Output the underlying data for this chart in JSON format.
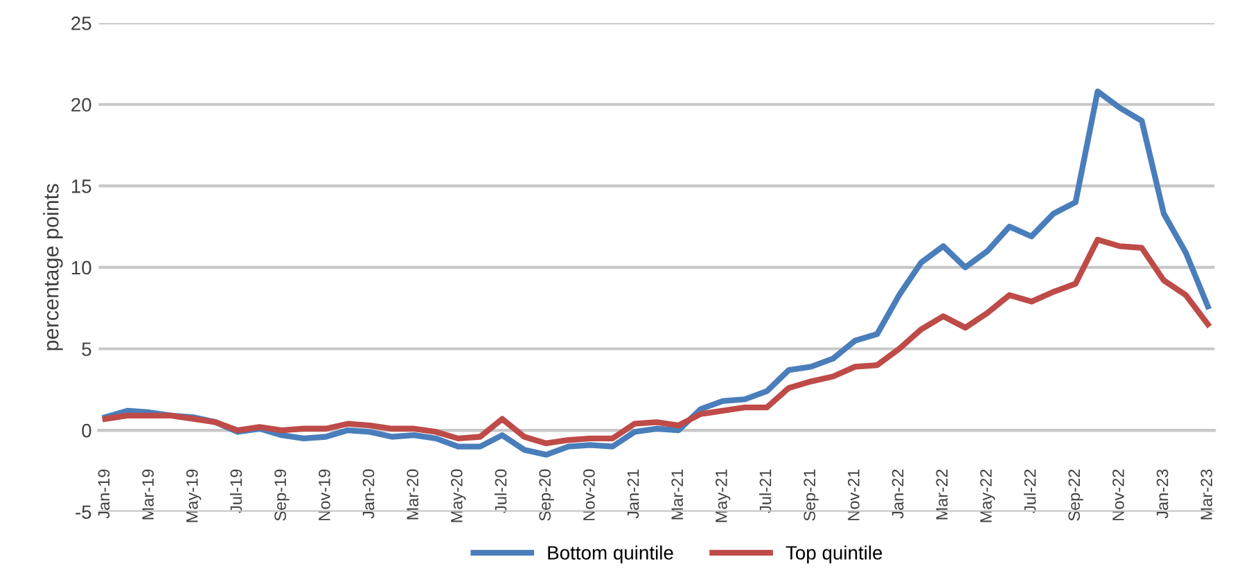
{
  "chart_data": {
    "type": "line",
    "ylabel": "percentage points",
    "categories": [
      "Jan-19",
      null,
      "Mar-19",
      null,
      "May-19",
      null,
      "Jul-19",
      null,
      "Sep-19",
      null,
      "Nov-19",
      null,
      "Jan-20",
      null,
      "Mar-20",
      null,
      "May-20",
      null,
      "Jul-20",
      null,
      "Sep-20",
      null,
      "Nov-20",
      null,
      "Jan-21",
      null,
      "Mar-21",
      null,
      "May-21",
      null,
      "Jul-21",
      null,
      "Sep-21",
      null,
      "Nov-21",
      null,
      "Jan-22",
      null,
      "Mar-22",
      null,
      "May-22",
      null,
      "Jul-22",
      null,
      "Sep-22",
      null,
      "Nov-22",
      null,
      "Jan-23",
      null,
      "Mar-23"
    ],
    "series": [
      {
        "name": "Bottom quintile",
        "color": "#4a7ebb",
        "values": [
          0.8,
          1.2,
          1.1,
          0.9,
          0.8,
          0.5,
          -0.1,
          0.1,
          -0.3,
          -0.5,
          -0.4,
          0.0,
          -0.1,
          -0.4,
          -0.3,
          -0.5,
          -1.0,
          -1.0,
          -0.3,
          -1.2,
          -1.5,
          -1.0,
          -0.9,
          -1.0,
          -0.1,
          0.1,
          0.0,
          1.3,
          1.8,
          1.9,
          2.4,
          3.7,
          3.9,
          4.4,
          5.5,
          5.9,
          8.3,
          10.3,
          11.3,
          10.0,
          11.0,
          12.5,
          11.9,
          13.3,
          14.0,
          20.8,
          19.8,
          19.0,
          13.3,
          10.9,
          7.6
        ]
      },
      {
        "name": "Top quintile",
        "color": "#be4b48",
        "values": [
          0.7,
          0.9,
          0.9,
          0.9,
          0.7,
          0.5,
          0.0,
          0.2,
          0.0,
          0.1,
          0.1,
          0.4,
          0.3,
          0.1,
          0.1,
          -0.1,
          -0.5,
          -0.4,
          0.7,
          -0.4,
          -0.8,
          -0.6,
          -0.5,
          -0.5,
          0.4,
          0.5,
          0.3,
          1.0,
          1.2,
          1.4,
          1.4,
          2.6,
          3.0,
          3.3,
          3.9,
          4.0,
          5.0,
          6.2,
          7.0,
          6.3,
          7.2,
          8.3,
          7.9,
          8.5,
          9.0,
          11.7,
          11.3,
          11.2,
          9.2,
          8.3,
          6.5
        ]
      }
    ],
    "ylim": [
      -5,
      25
    ],
    "yticks": [
      -5,
      0,
      5,
      10,
      15,
      20,
      25
    ],
    "grid": "y",
    "legend": "bottom",
    "marker": "none",
    "line_style": "solid"
  }
}
